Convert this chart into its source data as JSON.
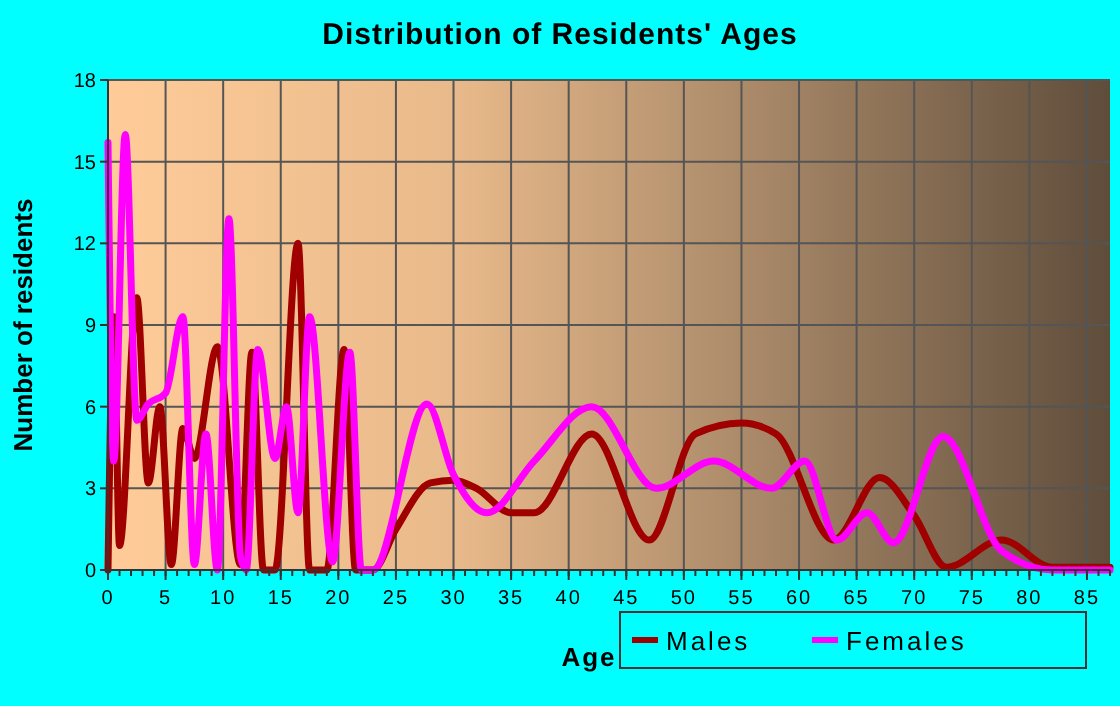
{
  "chart_data": {
    "type": "line",
    "title": "Distribution of Residents' Ages",
    "xlabel": "Age",
    "ylabel": "Number of residents",
    "xlim": [
      0,
      87
    ],
    "xticks": [
      0,
      5,
      10,
      15,
      20,
      25,
      30,
      35,
      40,
      45,
      50,
      55,
      60,
      65,
      70,
      75,
      80,
      85
    ],
    "ylim": [
      0,
      18
    ],
    "yticks": [
      0,
      3,
      6,
      9,
      12,
      15,
      18
    ],
    "grid": true,
    "legend": "bottom right",
    "marker": "none",
    "line_style": "solid",
    "series": [
      {
        "name": "Males",
        "color": "#a00000",
        "x": [
          0,
          0.5,
          1,
          2.5,
          3.5,
          4.5,
          5.5,
          6.5,
          7.5,
          9.5,
          11.5,
          12.5,
          13.5,
          14.5,
          16.5,
          17.5,
          19,
          20.5,
          21.5,
          23,
          25,
          28,
          30,
          32,
          35,
          37,
          42,
          47,
          51,
          55,
          58,
          63,
          67,
          70,
          72.8,
          77.6,
          82,
          87
        ],
        "values": [
          0,
          9.3,
          0.9,
          10,
          3.2,
          6,
          0.2,
          5.2,
          4.1,
          8.2,
          0.2,
          8,
          0,
          0,
          12,
          0,
          0,
          8.1,
          0,
          0,
          1.5,
          3.2,
          3.3,
          3,
          2.1,
          2.1,
          5,
          1.1,
          5,
          5.4,
          5,
          1.1,
          3.4,
          2,
          0.1,
          1.1,
          0.1,
          0.1
        ]
      },
      {
        "name": "Females",
        "color": "#ff00ff",
        "x": [
          0,
          0.5,
          1.5,
          2.5,
          3.5,
          5,
          6.5,
          7.5,
          8.5,
          9.5,
          10.5,
          11.5,
          12,
          13,
          14.5,
          15.5,
          16.5,
          17.5,
          19.5,
          21,
          22,
          23,
          27.7,
          30,
          32.9,
          37,
          42,
          47.6,
          52.6,
          57.6,
          60.5,
          63.3,
          65.9,
          68.2,
          72.5,
          77.6,
          82,
          87
        ],
        "values": [
          15.7,
          4,
          16,
          5.5,
          6.1,
          6.5,
          9.3,
          0.2,
          5,
          0,
          12.9,
          0.5,
          0,
          8.1,
          4.1,
          6,
          2.1,
          9.3,
          0.3,
          8,
          0,
          0,
          6.1,
          3.5,
          2.1,
          4,
          6,
          3,
          4,
          3,
          4,
          1.1,
          2.1,
          1,
          4.9,
          0.7,
          0,
          0
        ]
      }
    ]
  }
}
